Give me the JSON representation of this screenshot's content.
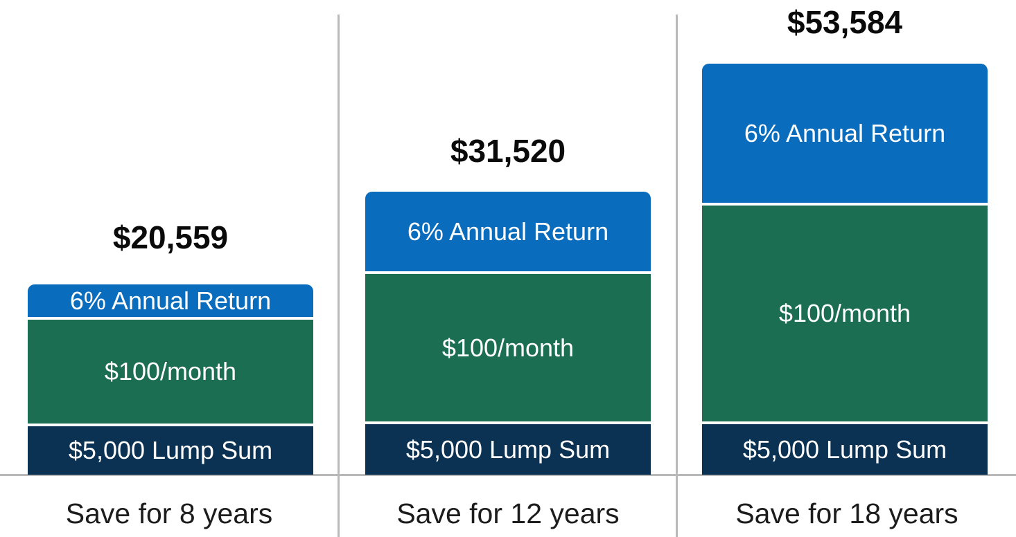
{
  "chart_data": {
    "type": "bar",
    "stacked": true,
    "orientation": "vertical",
    "title": "",
    "legend": "none (labels drawn inside segments)",
    "series_order_bottom_to_top": [
      "$5,000 Lump Sum",
      "$100/month",
      "6% Annual Return"
    ],
    "colors": {
      "lump_sum": "#0b3153",
      "monthly": "#1c6e52",
      "annual_return": "#0a6cbc",
      "divider_line": "#b9b9b9",
      "total_text": "#0a0a0a",
      "category_text": "#1c1c1c",
      "segment_text": "#ffffff"
    },
    "bars": [
      {
        "category": "Save for 8 years",
        "years": 8,
        "total_label": "$20,559",
        "total_value": 20559,
        "segments": [
          {
            "name": "lump_sum",
            "label": "$5,000 Lump Sum",
            "value": 5000
          },
          {
            "name": "monthly",
            "label": "$100/month",
            "rate": "$100/month"
          },
          {
            "name": "annual_return",
            "label": "6% Annual Return",
            "rate": "6%"
          }
        ]
      },
      {
        "category": "Save for 12 years",
        "years": 12,
        "total_label": "$31,520",
        "total_value": 31520,
        "segments": [
          {
            "name": "lump_sum",
            "label": "$5,000 Lump Sum",
            "value": 5000
          },
          {
            "name": "monthly",
            "label": "$100/month",
            "rate": "$100/month"
          },
          {
            "name": "annual_return",
            "label": "6% Annual Return",
            "rate": "6%"
          }
        ]
      },
      {
        "category": "Save for 18 years",
        "years": 18,
        "total_label": "$53,584",
        "total_value": 53584,
        "segments": [
          {
            "name": "lump_sum",
            "label": "$5,000 Lump Sum",
            "value": 5000
          },
          {
            "name": "monthly",
            "label": "$100/month",
            "rate": "$100/month"
          },
          {
            "name": "annual_return",
            "label": "6% Annual Return",
            "rate": "6%"
          }
        ]
      }
    ]
  }
}
